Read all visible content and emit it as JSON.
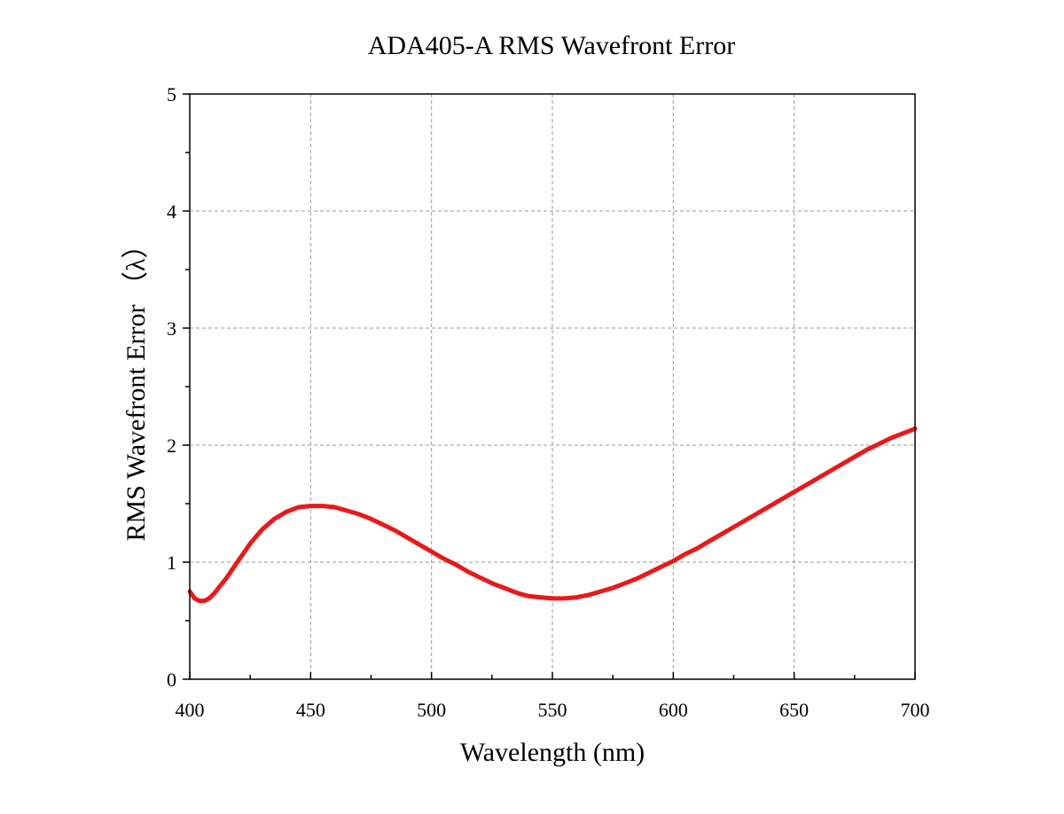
{
  "chart_data": {
    "type": "line",
    "title": "ADA405-A RMS Wavefront Error",
    "xlabel": "Wavelength (nm)",
    "ylabel": "RMS Wavefront Error （λ）",
    "xlim": [
      400,
      700
    ],
    "ylim": [
      0,
      5
    ],
    "xticks": [
      400,
      450,
      500,
      550,
      600,
      650,
      700
    ],
    "yticks": [
      0,
      1,
      2,
      3,
      4,
      5
    ],
    "x_minor_step": 25,
    "y_minor_step": 0.5,
    "grid": true,
    "legend": "none",
    "series_color": "#e8191b",
    "series": [
      {
        "x": [
          400,
          402,
          404,
          406,
          408,
          410,
          415,
          420,
          425,
          430,
          435,
          440,
          445,
          450,
          455,
          460,
          465,
          470,
          475,
          480,
          485,
          490,
          495,
          500,
          505,
          510,
          515,
          520,
          525,
          530,
          535,
          540,
          545,
          550,
          555,
          560,
          565,
          570,
          575,
          580,
          585,
          590,
          595,
          600,
          605,
          610,
          615,
          620,
          625,
          630,
          635,
          640,
          645,
          650,
          655,
          660,
          665,
          670,
          675,
          680,
          685,
          690,
          695,
          700
        ],
        "y": [
          0.75,
          0.69,
          0.67,
          0.67,
          0.69,
          0.73,
          0.86,
          1.01,
          1.16,
          1.28,
          1.37,
          1.43,
          1.47,
          1.48,
          1.48,
          1.47,
          1.44,
          1.41,
          1.37,
          1.32,
          1.27,
          1.21,
          1.15,
          1.09,
          1.03,
          0.98,
          0.92,
          0.87,
          0.82,
          0.78,
          0.74,
          0.71,
          0.7,
          0.69,
          0.69,
          0.7,
          0.72,
          0.75,
          0.78,
          0.82,
          0.86,
          0.91,
          0.96,
          1.01,
          1.07,
          1.12,
          1.18,
          1.24,
          1.3,
          1.36,
          1.42,
          1.48,
          1.54,
          1.6,
          1.66,
          1.72,
          1.78,
          1.84,
          1.9,
          1.96,
          2.01,
          2.06,
          2.1,
          2.14
        ]
      }
    ]
  }
}
